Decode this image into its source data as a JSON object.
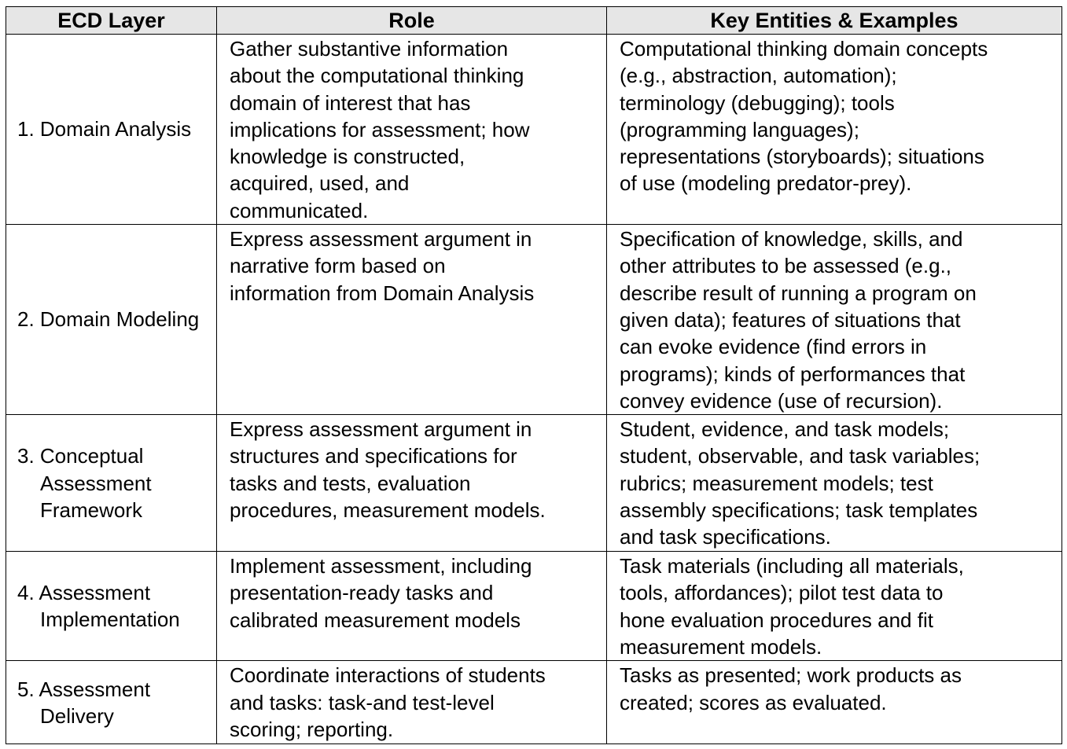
{
  "headers": {
    "layer": "ECD Layer",
    "role": "Role",
    "entities": "Key Entities & Examples"
  },
  "rows": [
    {
      "layer": "1. Domain Analysis",
      "role": "Gather substantive information\nabout the computational thinking\ndomain of interest that has\nimplications for assessment; how\nknowledge is constructed,\nacquired, used, and\ncommunicated.",
      "entities": "Computational thinking domain concepts\n(e.g., abstraction, automation);\nterminology (debugging); tools\n(programming languages);\nrepresentations (storyboards); situations\nof use (modeling predator-prey)."
    },
    {
      "layer": "2. Domain Modeling",
      "role": "Express assessment argument in\nnarrative form based on\ninformation from Domain Analysis",
      "entities": "Specification of knowledge, skills, and\nother attributes to be assessed (e.g.,\ndescribe result of running a program on\ngiven data); features of situations that\ncan evoke evidence (find errors in\nprograms); kinds of performances that\nconvey evidence (use of recursion)."
    },
    {
      "layer": "3. Conceptual Assessment Framework",
      "role": "Express assessment argument in\nstructures and specifications for\ntasks and tests, evaluation\nprocedures, measurement models.",
      "entities": "Student, evidence, and task models;\nstudent, observable, and task variables;\nrubrics; measurement models; test\nassembly specifications; task templates\nand task specifications."
    },
    {
      "layer": "4. Assessment Implementation",
      "role": "Implement assessment, including\npresentation-ready tasks and\ncalibrated measurement models",
      "entities": "Task materials (including all materials,\ntools, affordances); pilot test data to\nhone evaluation procedures and fit\nmeasurement models."
    },
    {
      "layer": "5. Assessment Delivery",
      "role": "Coordinate interactions of students\nand tasks: task-and test-level\nscoring; reporting.",
      "entities": "Tasks as presented; work products as\ncreated; scores as evaluated."
    }
  ]
}
